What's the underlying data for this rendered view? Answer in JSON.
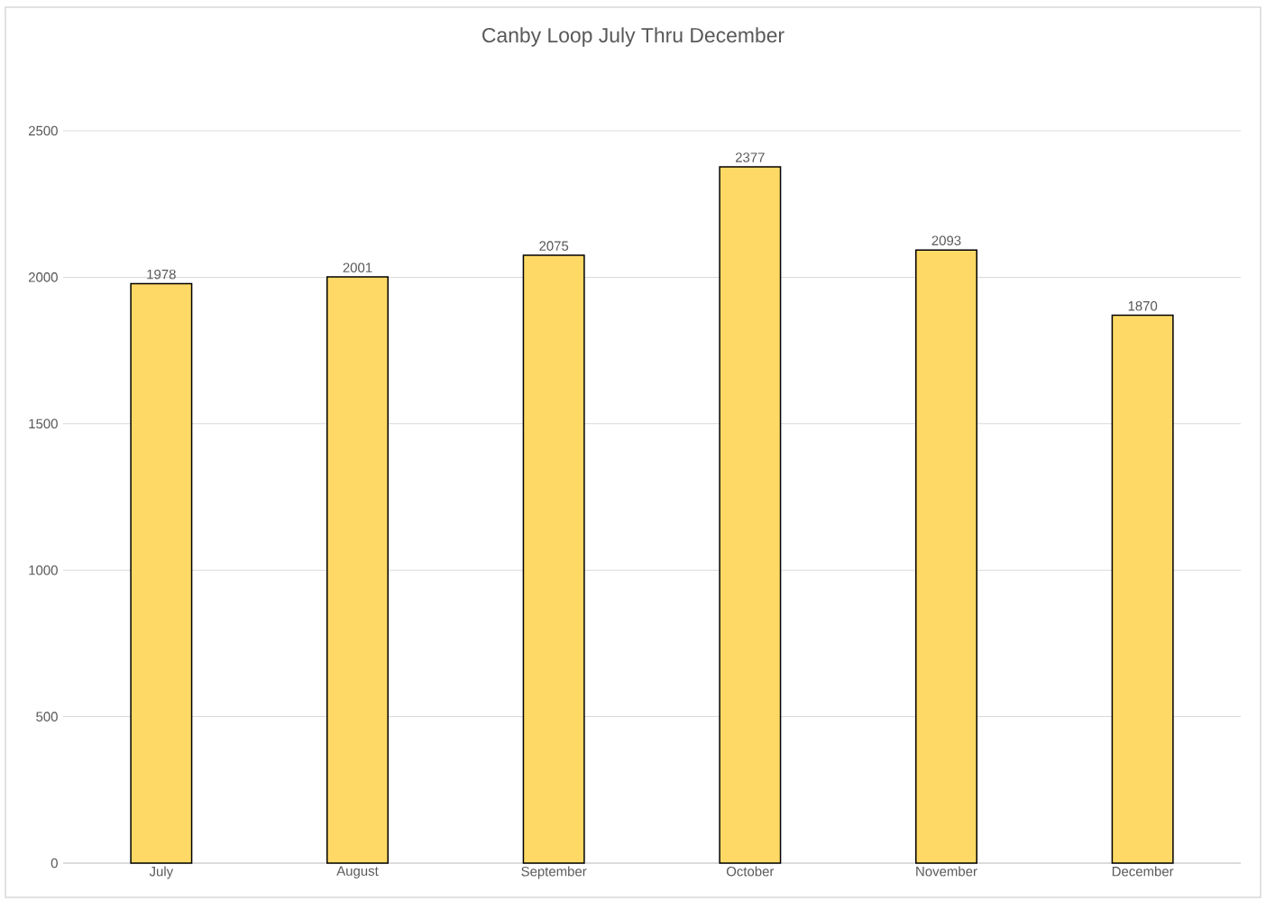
{
  "chart_data": {
    "type": "bar",
    "title": "Canby Loop July Thru December",
    "categories": [
      "July",
      "August",
      "September",
      "October",
      "November",
      "December"
    ],
    "values": [
      1978,
      2001,
      2075,
      2377,
      2093,
      1870
    ],
    "color": "#ffd966",
    "ylim": [
      0,
      2500
    ],
    "yticks": [
      0,
      500,
      1000,
      1500,
      2000,
      2500
    ],
    "grid": "y",
    "data_labels": true
  }
}
